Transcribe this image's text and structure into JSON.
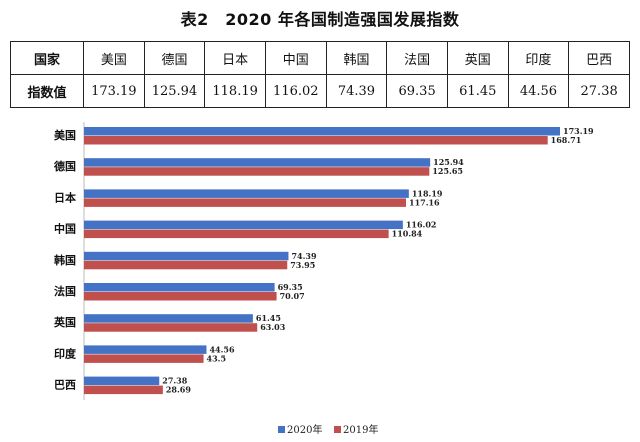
{
  "title": "表2　2020 年各国制造强国发展指数",
  "table": {
    "row1_header": "国家",
    "row2_header": "指数值",
    "countries": [
      "美国",
      "德国",
      "日本",
      "中国",
      "韩国",
      "法国",
      "英国",
      "印度",
      "巴西"
    ],
    "values": [
      "173.19",
      "125.94",
      "118.19",
      "116.02",
      "74.39",
      "69.35",
      "61.45",
      "44.56",
      "27.38"
    ]
  },
  "chart_data": {
    "type": "bar",
    "orientation": "horizontal",
    "categories": [
      "美国",
      "德国",
      "日本",
      "中国",
      "韩国",
      "法国",
      "英国",
      "印度",
      "巴西"
    ],
    "series": [
      {
        "name": "2020年",
        "color": "#4472c4",
        "values": [
          173.19,
          125.94,
          118.19,
          116.02,
          74.39,
          69.35,
          61.45,
          44.56,
          27.38
        ],
        "labels": [
          "173.19",
          "125.94",
          "118.19",
          "116.02",
          "74.39",
          "69.35",
          "61.45",
          "44.56",
          "27.38"
        ]
      },
      {
        "name": "2019年",
        "color": "#c0504d",
        "values": [
          168.71,
          125.65,
          117.16,
          110.84,
          73.95,
          70.07,
          63.03,
          43.5,
          28.69
        ],
        "labels": [
          "168.71",
          "125.65",
          "117.16",
          "110.84",
          "73.95",
          "70.07",
          "63.03",
          "43.5",
          "28.69"
        ]
      }
    ],
    "xlim": [
      0,
      180
    ],
    "grid": false,
    "legend": "bottom-center"
  }
}
